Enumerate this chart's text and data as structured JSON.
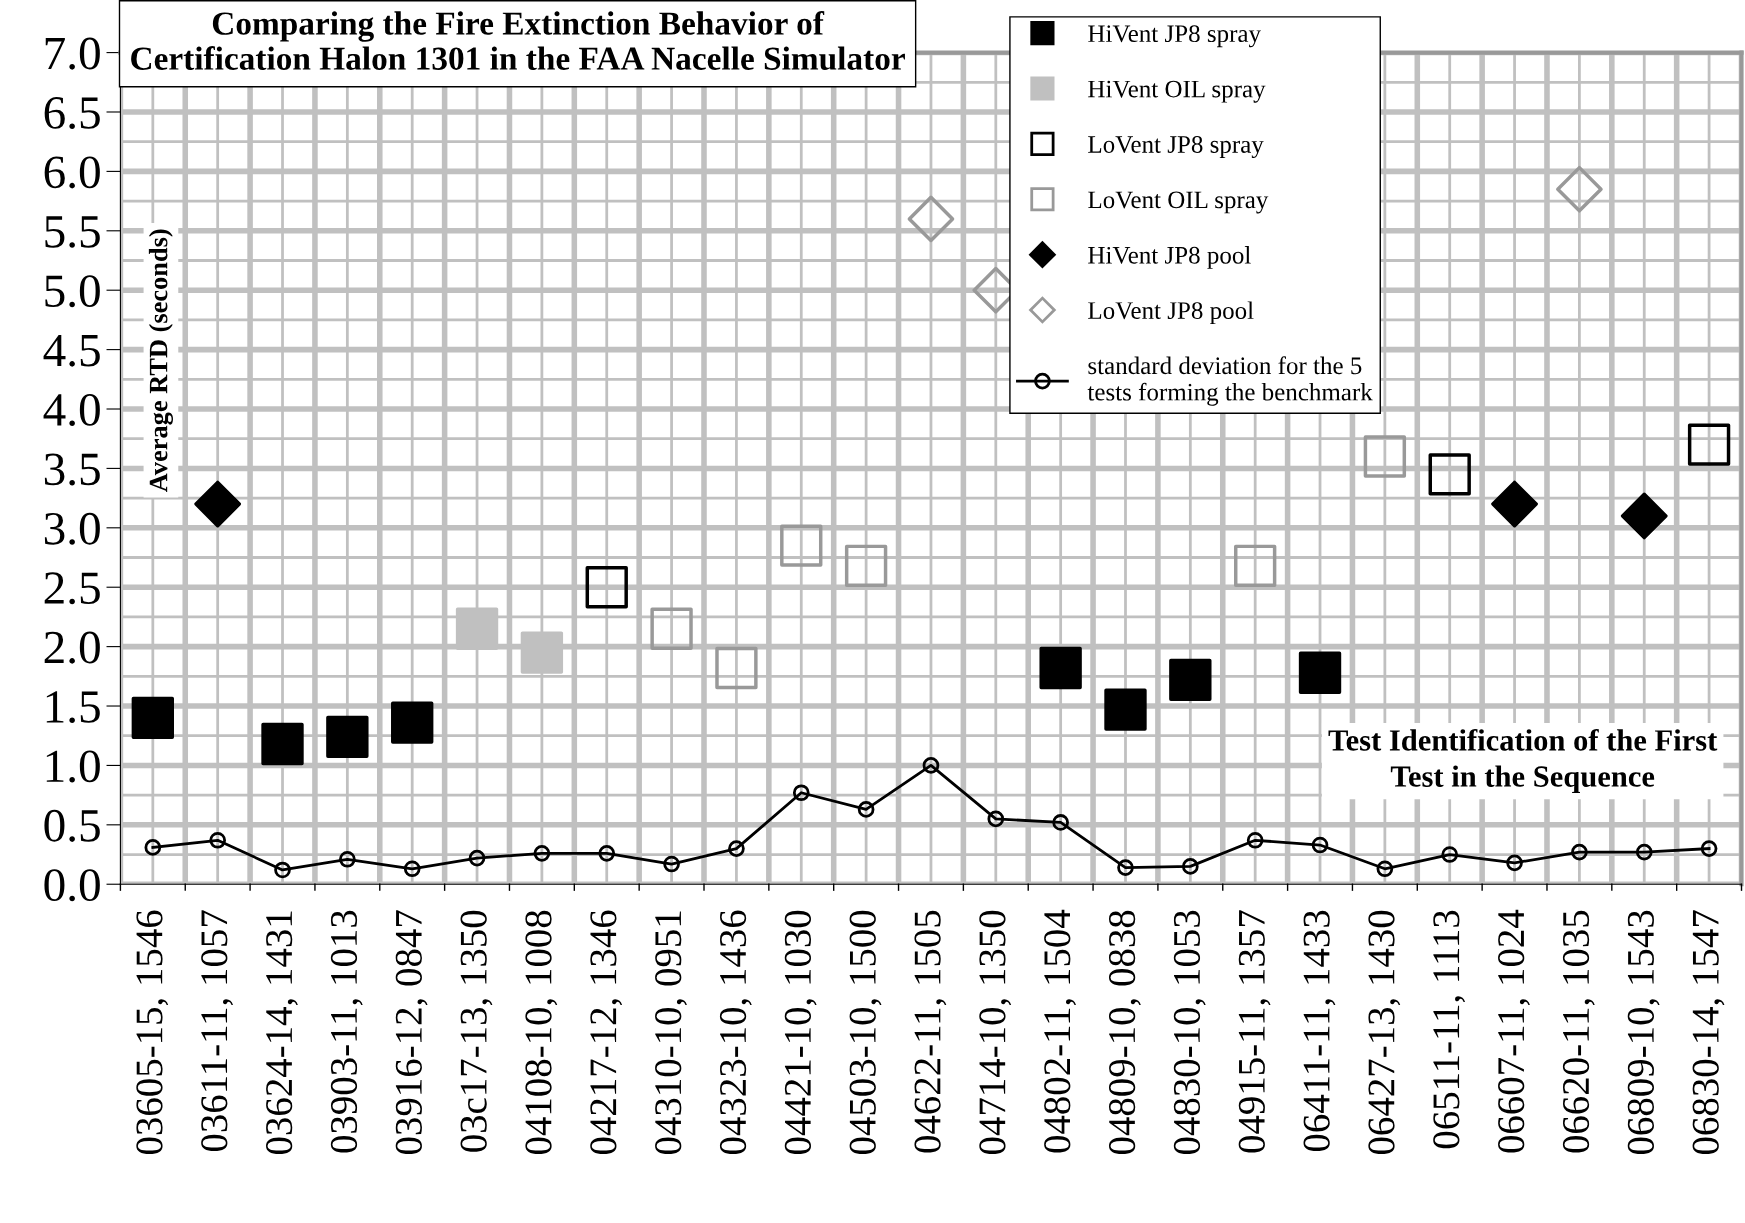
{
  "chart_data": {
    "type": "scatter",
    "title": "Comparing the Fire Extinction Behavior of\nCertification Halon 1301 in the FAA Nacelle Simulator",
    "xlabel": "Test Identification of the First\nTest in the Sequence",
    "ylabel": "Average RTD (seconds)",
    "categories": [
      "03605-15, 1546",
      "03611-11, 1057",
      "03624-14, 1431",
      "03903-11, 1013",
      "03916-12, 0847",
      "03c17-13, 1350",
      "04108-10, 1008",
      "04217-12, 1346",
      "04310-10, 0951",
      "04323-10, 1436",
      "04421-10, 1030",
      "04503-10, 1500",
      "04622-11, 1505",
      "04714-10, 1350",
      "04802-11, 1504",
      "04809-10, 0838",
      "04830-10, 1053",
      "04915-11, 1357",
      "06411-11, 1433",
      "06427-13, 1430",
      "06511-11, 1113",
      "06607-11, 1024",
      "06620-11, 1035",
      "06809-10, 1543",
      "06830-14, 1547"
    ],
    "series": [
      {
        "name": "HiVent JP8 spray",
        "color": "#000000",
        "marker": "square",
        "values": [
          1.4,
          null,
          1.18,
          1.24,
          1.36,
          null,
          null,
          null,
          null,
          null,
          null,
          null,
          null,
          null,
          1.82,
          1.47,
          1.72,
          null,
          1.78,
          null,
          null,
          null,
          null,
          null,
          null
        ]
      },
      {
        "name": "HiVent OIL spray",
        "color": "#c0c0c0",
        "marker": "square",
        "values": [
          null,
          null,
          null,
          null,
          null,
          2.15,
          1.95,
          null,
          null,
          null,
          null,
          null,
          null,
          null,
          null,
          null,
          null,
          null,
          null,
          null,
          null,
          null,
          null,
          null,
          null
        ]
      },
      {
        "name": "LoVent JP8 spray",
        "color": "#000000",
        "marker": "square",
        "values": [
          null,
          null,
          null,
          null,
          null,
          null,
          null,
          2.5,
          null,
          null,
          null,
          null,
          null,
          null,
          null,
          null,
          null,
          null,
          null,
          null,
          3.45,
          null,
          null,
          null,
          3.7
        ]
      },
      {
        "name": "LoVent OIL spray",
        "color": "#999999",
        "marker": "square",
        "values": [
          null,
          null,
          null,
          null,
          null,
          null,
          null,
          null,
          2.15,
          1.82,
          2.85,
          2.68,
          null,
          null,
          null,
          null,
          null,
          2.68,
          null,
          3.6,
          null,
          null,
          null,
          null,
          null
        ]
      },
      {
        "name": "HiVent JP8 pool",
        "color": "#000000",
        "marker": "diamond",
        "values": [
          null,
          3.2,
          null,
          null,
          null,
          null,
          null,
          null,
          null,
          null,
          null,
          null,
          null,
          null,
          null,
          null,
          null,
          null,
          null,
          null,
          null,
          3.2,
          null,
          3.1,
          null
        ]
      },
      {
        "name": "LoVent JP8 pool",
        "color": "#999999",
        "marker": "diamond",
        "values": [
          null,
          null,
          null,
          null,
          null,
          null,
          null,
          null,
          null,
          null,
          null,
          null,
          5.6,
          5.0,
          null,
          null,
          null,
          null,
          null,
          null,
          null,
          null,
          5.85,
          null,
          null
        ]
      },
      {
        "name": "standard deviation for the 5\ntests forming the benchmark",
        "type": "line",
        "color": "#000000",
        "marker": "circle",
        "values": [
          0.31,
          0.37,
          0.12,
          0.21,
          0.13,
          0.22,
          0.26,
          0.26,
          0.17,
          0.3,
          0.77,
          0.63,
          1.0,
          0.55,
          0.52,
          0.14,
          0.15,
          0.37,
          0.33,
          0.13,
          0.25,
          0.18,
          0.27,
          0.27,
          0.3
        ]
      }
    ],
    "ylim": [
      0,
      7.0
    ],
    "yticks": [
      {
        "value": 0,
        "label": "0.0"
      },
      {
        "value": 0.5,
        "label": "0.5"
      },
      {
        "value": 1,
        "label": "1.0"
      },
      {
        "value": 1.5,
        "label": "1.5"
      },
      {
        "value": 2,
        "label": "2.0"
      },
      {
        "value": 2.5,
        "label": "2.5"
      },
      {
        "value": 3,
        "label": "3.0"
      },
      {
        "value": 3.5,
        "label": "3.5"
      },
      {
        "value": 4,
        "label": "4.0"
      },
      {
        "value": 4.5,
        "label": "4.5"
      },
      {
        "value": 5,
        "label": "5.0"
      },
      {
        "value": 5.5,
        "label": "5.5"
      },
      {
        "value": 6,
        "label": "6.0"
      },
      {
        "value": 6.5,
        "label": "6.5"
      },
      {
        "value": 7,
        "label": "7.0"
      }
    ],
    "grid": true,
    "legend": "top right"
  }
}
